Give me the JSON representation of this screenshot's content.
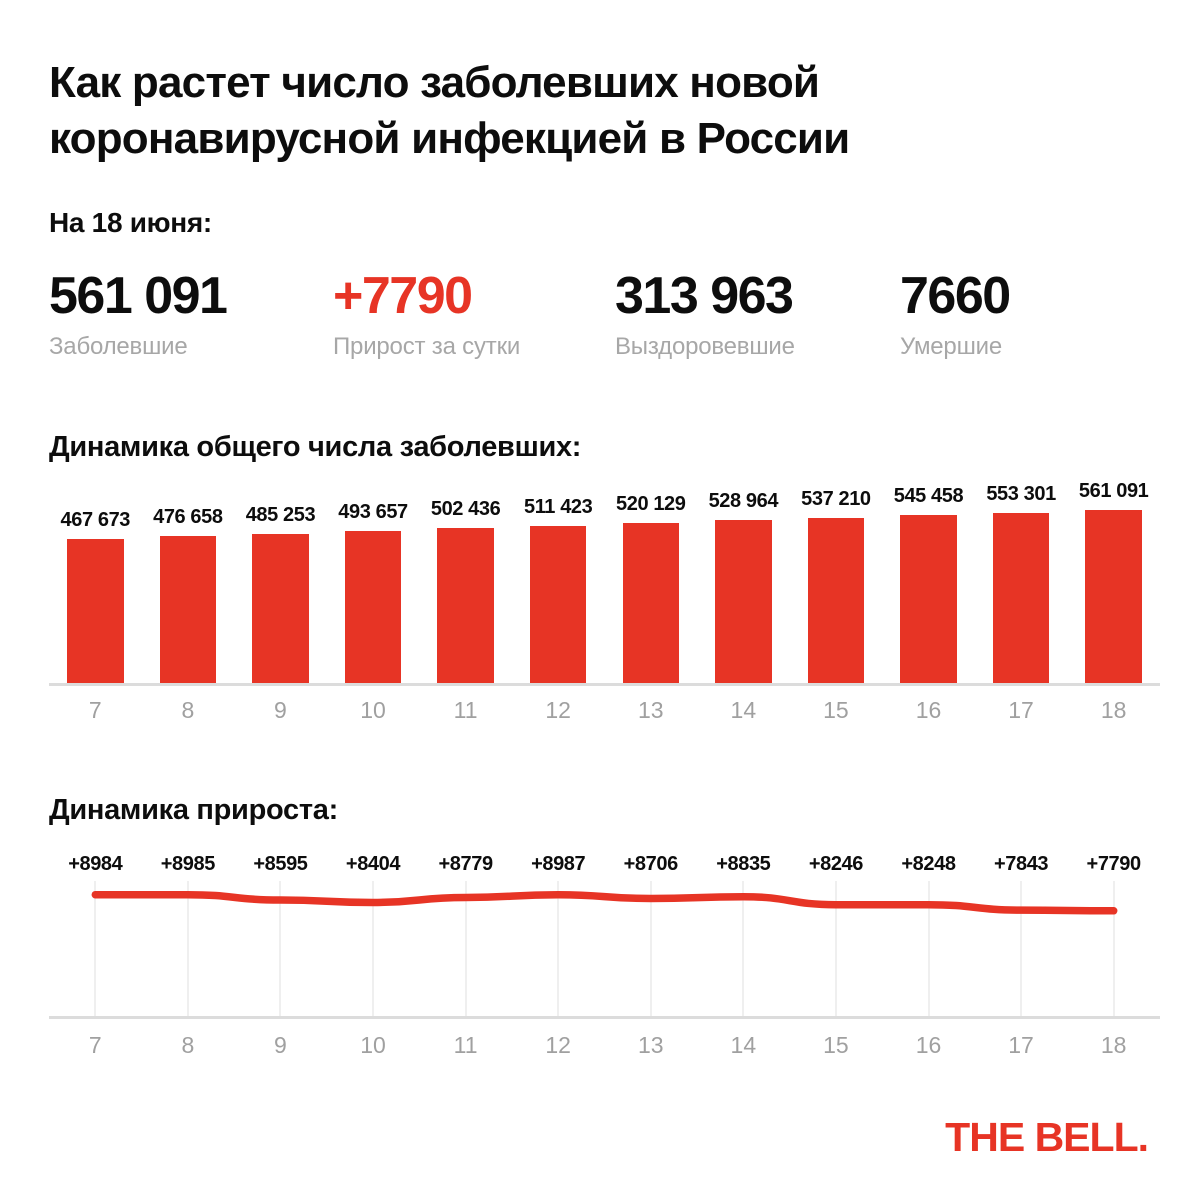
{
  "title": "Как растет число заболевших новой коронавирусной инфекцией в России",
  "as_of_label": "На 18 июня:",
  "stats": [
    {
      "value": "561 091",
      "label": "Заболевшие",
      "emphasis": "black"
    },
    {
      "value": "+7790",
      "label": "Прирост за сутки",
      "emphasis": "red"
    },
    {
      "value": "313 963",
      "label": "Выздоровевшие",
      "emphasis": "black"
    },
    {
      "value": "7660",
      "label": "Умершие",
      "emphasis": "black"
    }
  ],
  "colors": {
    "accent_red": "#e73425",
    "text_black": "#0d0d0d",
    "label_gray": "#a7a7a7",
    "tick_gray": "#a0a0a0",
    "axis_gray": "#dcdcdc",
    "grid_gray": "#efefef"
  },
  "chart_data": [
    {
      "type": "bar",
      "title": "Динамика общего числа заболевших:",
      "categories": [
        "7",
        "8",
        "9",
        "10",
        "11",
        "12",
        "13",
        "14",
        "15",
        "16",
        "17",
        "18"
      ],
      "values": [
        467673,
        476658,
        485253,
        493657,
        502436,
        511423,
        520129,
        528964,
        537210,
        545458,
        553301,
        561091
      ],
      "value_labels": [
        "467 673",
        "476 658",
        "485 253",
        "493 657",
        "502 436",
        "511 423",
        "520 129",
        "528 964",
        "537 210",
        "545 458",
        "553 301",
        "561 091"
      ],
      "xlabel": "",
      "ylabel": "",
      "ylim": [
        0,
        561091
      ],
      "grid": false,
      "legend": "none",
      "bar_color": "#e73425"
    },
    {
      "type": "line",
      "title": "Динамика прироста:",
      "categories": [
        "7",
        "8",
        "9",
        "10",
        "11",
        "12",
        "13",
        "14",
        "15",
        "16",
        "17",
        "18"
      ],
      "values": [
        8984,
        8985,
        8595,
        8404,
        8779,
        8987,
        8706,
        8835,
        8246,
        8248,
        7843,
        7790
      ],
      "value_labels": [
        "+8984",
        "+8985",
        "+8595",
        "+8404",
        "+8779",
        "+8987",
        "+8706",
        "+8835",
        "+8246",
        "+8248",
        "+7843",
        "+7790"
      ],
      "xlabel": "",
      "ylabel": "",
      "ylim": [
        0,
        10000
      ],
      "grid": true,
      "legend": "none",
      "line_color": "#e73425"
    }
  ],
  "footer": {
    "logo_text": "THE BELL."
  }
}
